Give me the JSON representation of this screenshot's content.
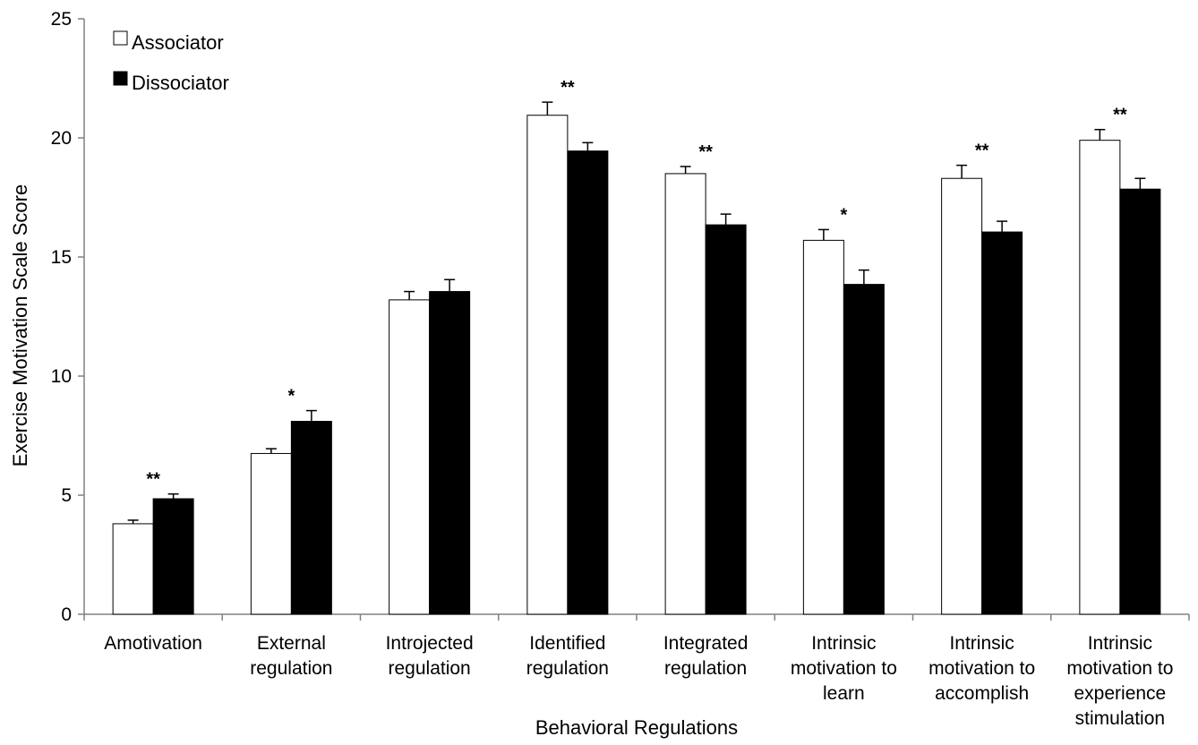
{
  "chart_data": {
    "type": "bar",
    "title": "",
    "xlabel": "Behavioral Regulations",
    "ylabel": "Exercise Motivation Scale Score",
    "ylim": [
      0,
      25
    ],
    "yticks": [
      0,
      5,
      10,
      15,
      20,
      25
    ],
    "grid": false,
    "legend_position": "top-left",
    "categories": [
      [
        "Amotivation"
      ],
      [
        "External",
        "regulation"
      ],
      [
        "Introjected",
        "regulation"
      ],
      [
        "Identified",
        "regulation"
      ],
      [
        "Integrated",
        "regulation"
      ],
      [
        "Intrinsic",
        "motivation to",
        "learn"
      ],
      [
        "Intrinsic",
        "motivation to",
        "accomplish"
      ],
      [
        "Intrinsic",
        "motivation to",
        "experience",
        "stimulation"
      ]
    ],
    "series": [
      {
        "name": "Associator",
        "color": "#ffffff",
        "values": [
          3.8,
          6.75,
          13.2,
          20.95,
          18.5,
          15.7,
          18.3,
          19.9
        ],
        "errors": [
          0.15,
          0.2,
          0.35,
          0.55,
          0.3,
          0.45,
          0.55,
          0.45
        ]
      },
      {
        "name": "Dissociator",
        "color": "#000000",
        "values": [
          4.85,
          8.1,
          13.55,
          19.45,
          16.35,
          13.85,
          16.05,
          17.85
        ],
        "errors": [
          0.2,
          0.45,
          0.5,
          0.35,
          0.45,
          0.6,
          0.45,
          0.45
        ]
      }
    ],
    "significance": [
      "**",
      "*",
      "",
      "**",
      "**",
      "*",
      "**",
      "**"
    ]
  }
}
